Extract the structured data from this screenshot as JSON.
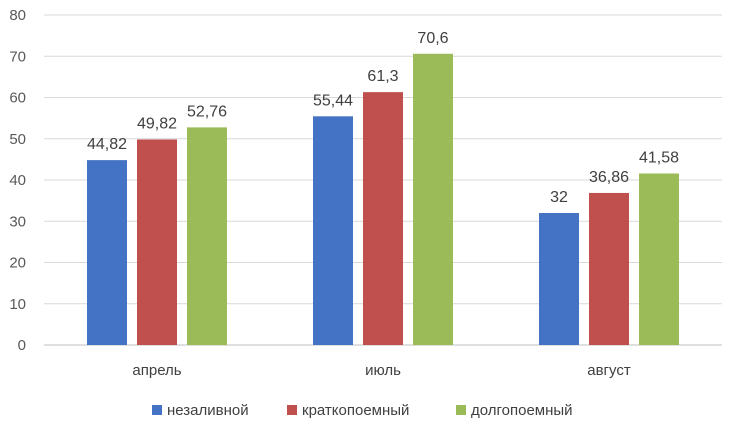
{
  "chart_data": {
    "type": "bar",
    "categories": [
      "апрель",
      "июль",
      "август"
    ],
    "series": [
      {
        "name": "незаливной",
        "color": "#4472C4",
        "values": [
          44.82,
          55.44,
          32
        ],
        "labels": [
          "44,82",
          "55,44",
          "32"
        ]
      },
      {
        "name": "краткопоемный",
        "color": "#C0504D",
        "values": [
          49.82,
          61.3,
          36.86
        ],
        "labels": [
          "49,82",
          "61,3",
          "36,86"
        ]
      },
      {
        "name": "долгопоемный",
        "color": "#9BBB59",
        "values": [
          52.76,
          70.6,
          41.58
        ],
        "labels": [
          "52,76",
          "70,6",
          "41,58"
        ]
      }
    ],
    "ylim": [
      0,
      80
    ],
    "yticks": [
      0,
      10,
      20,
      30,
      40,
      50,
      60,
      70,
      80
    ],
    "grid": true,
    "legend": "bottom"
  }
}
